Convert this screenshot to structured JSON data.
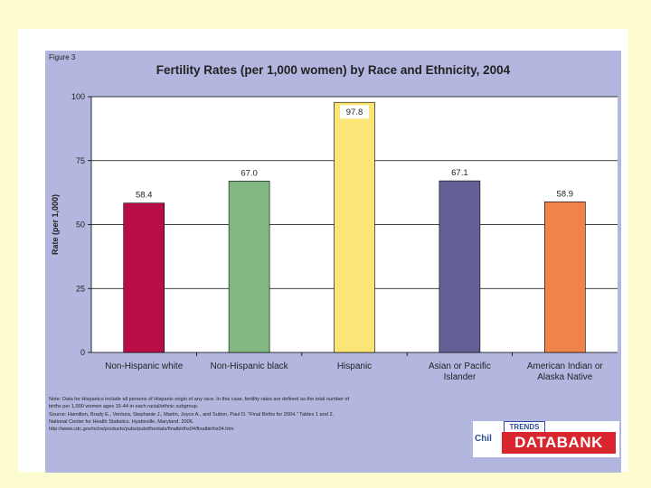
{
  "figure_label": "Figure 3",
  "note_lines": [
    "Note: Data for Hispanics include all persons of Hispanic origin of any race. In this case, fertility rates are defined as the total number of",
    "births per 1,000 women ages 15-44 in each racial/ethnic subgroup.",
    "Source: Hamilton, Brady E., Ventura, Stephanie J., Martin, Joyce A., and Sutton, Paul D. \"Final Births for 2004.\" Tables 1 and 2.",
    "National Center for Health Statistics. Hyattsville, Maryland. 2006.",
    "http://www.cdc.gov/nchs/products/pubs/pubd/hestats/finalbirths04/finalbirths04.htm"
  ],
  "logo": {
    "top": "TRENDS",
    "side": "Chil",
    "main": "DATABANK"
  },
  "colors": {
    "slide_background": "#fdfbd0",
    "panel_background": "#b3b6df",
    "plot_background": "#ffffff"
  },
  "chart_data": {
    "type": "bar",
    "title": "Fertility Rates (per 1,000 women) by Race and Ethnicity, 2004",
    "xlabel": "",
    "ylabel": "Rate (per 1,000)",
    "ylim": [
      0,
      100
    ],
    "yticks": [
      0,
      25,
      50,
      75,
      100
    ],
    "grid": true,
    "categories": [
      [
        "Non-Hispanic white"
      ],
      [
        "Non-Hispanic black"
      ],
      [
        "Hispanic"
      ],
      [
        "Asian or Pacific",
        "Islander"
      ],
      [
        "American Indian or",
        "Alaska Native"
      ]
    ],
    "values": [
      58.4,
      67.0,
      97.8,
      67.1,
      58.9
    ],
    "value_labels": [
      "58.4",
      "67.0",
      "97.8",
      "67.1",
      "58.9"
    ],
    "bar_colors": [
      "#b80e45",
      "#82b781",
      "#fce577",
      "#646096",
      "#f0834a"
    ]
  }
}
